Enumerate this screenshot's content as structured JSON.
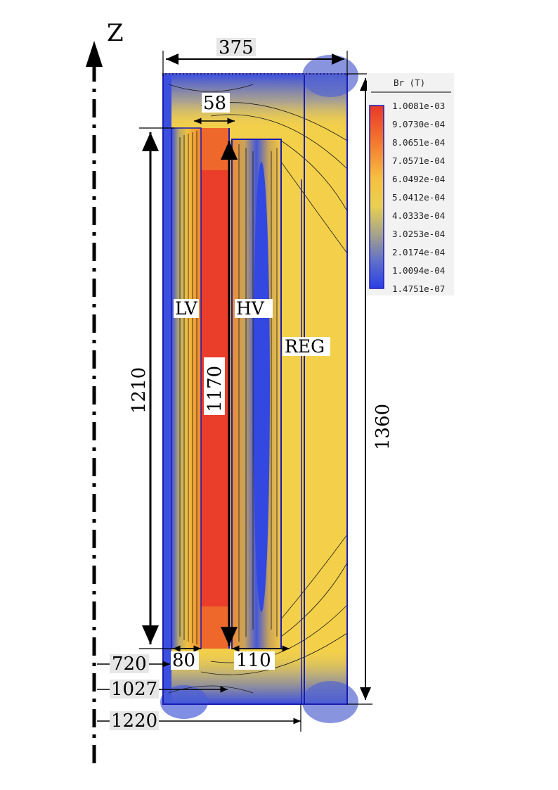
{
  "axis": {
    "label": "Z"
  },
  "dimensions": {
    "width_total": "375",
    "lv_gap": "58",
    "height_lv": "1210",
    "height_core": "1170",
    "height_total": "1360",
    "radius_720": "720",
    "radius_1027": "1027",
    "radius_1220": "1220",
    "lv_width": "80",
    "hv_width": "110"
  },
  "regions": {
    "lv": "LV",
    "hv": "HV",
    "reg": "REG"
  },
  "legend": {
    "title": "Br (T)",
    "values": [
      "1.0081e-03",
      "9.0730e-04",
      "8.0651e-04",
      "7.0571e-04",
      "6.0492e-04",
      "5.0412e-04",
      "4.0333e-04",
      "3.0253e-04",
      "2.0174e-04",
      "1.0094e-04",
      "1.4751e-07"
    ],
    "colors": [
      "#e8392a",
      "#f06a2c",
      "#f69034",
      "#f8b23c",
      "#f6cc44",
      "#f2d54a",
      "#d9c35c",
      "#9c9a8c",
      "#6d78b8",
      "#4a5ed8",
      "#2b3fe6"
    ]
  }
}
